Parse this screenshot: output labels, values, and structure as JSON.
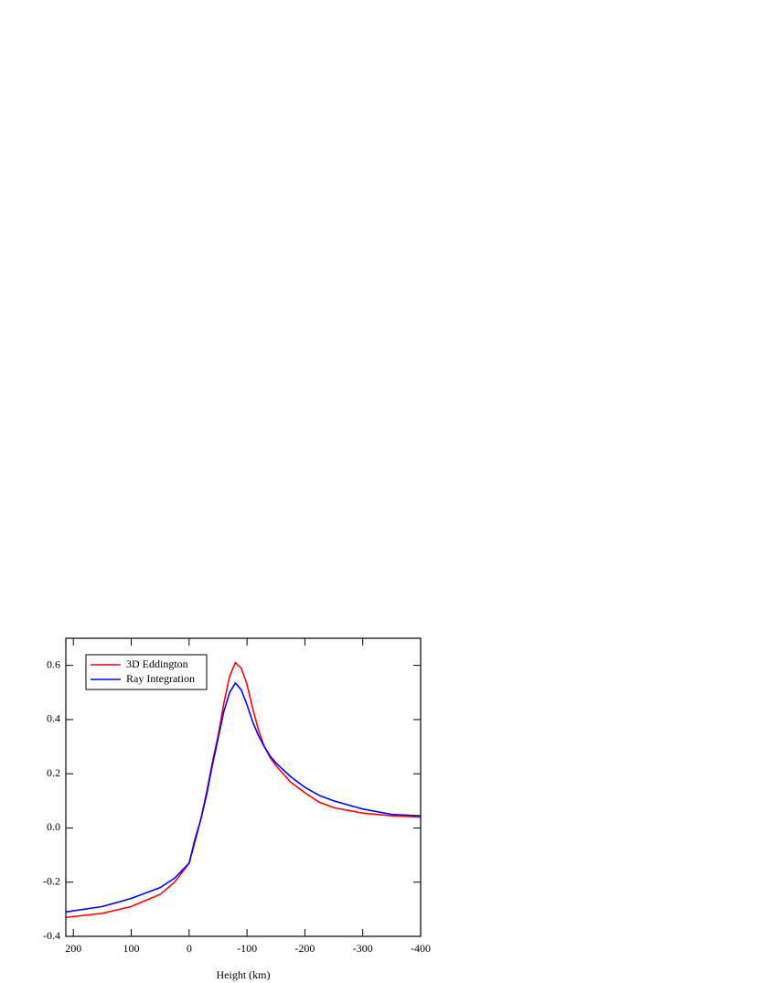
{
  "chart_data": {
    "type": "line",
    "xlabel": "Height (km)",
    "x": [
      213,
      150,
      100,
      50,
      25,
      0,
      -10,
      -20,
      -30,
      -40,
      -50,
      -60,
      -70,
      -80,
      -90,
      -100,
      -110,
      -120,
      -130,
      -140,
      -150,
      -175,
      -200,
      -225,
      -250,
      -300,
      -350,
      -400
    ],
    "series": [
      {
        "name": "3D Eddington",
        "color": "#ff0000",
        "values": [
          -0.33,
          -0.315,
          -0.29,
          -0.245,
          -0.2,
          -0.13,
          -0.04,
          0.03,
          0.13,
          0.24,
          0.34,
          0.46,
          0.56,
          0.61,
          0.59,
          0.53,
          0.44,
          0.36,
          0.3,
          0.26,
          0.23,
          0.17,
          0.13,
          0.095,
          0.075,
          0.055,
          0.045,
          0.04
        ]
      },
      {
        "name": "Ray Integration",
        "color": "#0000ff",
        "values": [
          -0.31,
          -0.29,
          -0.26,
          -0.22,
          -0.185,
          -0.13,
          -0.05,
          0.03,
          0.12,
          0.23,
          0.33,
          0.43,
          0.5,
          0.535,
          0.51,
          0.455,
          0.39,
          0.34,
          0.3,
          0.265,
          0.24,
          0.19,
          0.15,
          0.12,
          0.1,
          0.07,
          0.05,
          0.045
        ]
      }
    ],
    "xlim": [
      213,
      -400
    ],
    "xticks": [
      200,
      100,
      0,
      -100,
      -200,
      -300,
      -400
    ],
    "ylim": [
      -0.4,
      0.7
    ],
    "yticks": [
      -0.4,
      -0.2,
      {
        "value": 0,
        "label": "0.0"
      },
      0.2,
      0.4,
      0.6
    ],
    "legend": "upper left",
    "grid": false
  }
}
